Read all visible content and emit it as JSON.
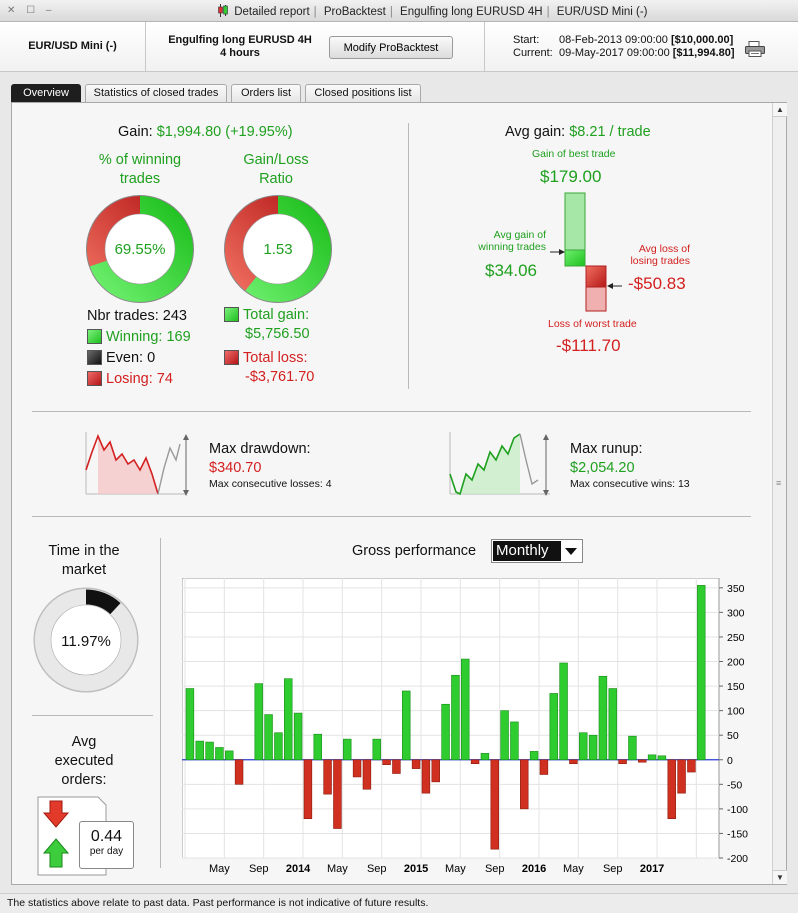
{
  "window": {
    "title_parts": [
      "Detailed report",
      "ProBacktest",
      "Engulfing long EURUSD 4H",
      "EUR/USD Mini (-)"
    ],
    "icons": [
      "candlestick-icon"
    ]
  },
  "header": {
    "instrument": "EUR/USD Mini (-)",
    "strategy_line1": "Engulfing long EURUSD 4H",
    "strategy_line2": "4 hours",
    "modify_button": "Modify ProBacktest",
    "start_label": "Start:",
    "start_date": "08-Feb-2013 09:00:00",
    "start_value": "[$10,000.00]",
    "current_label": "Current:",
    "current_date": "09-May-2017 09:00:00",
    "current_value": "[$11,994.80]"
  },
  "tabs": [
    {
      "label": "Overview",
      "active": true
    },
    {
      "label": "Statistics of closed trades",
      "active": false
    },
    {
      "label": "Orders list",
      "active": false
    },
    {
      "label": "Closed positions list",
      "active": false
    }
  ],
  "gain": {
    "label": "Gain:",
    "value": "$1,994.80 (+19.95%)"
  },
  "winning_pct": {
    "title_line1": "% of winning",
    "title_line2": "trades",
    "value": "69.55%",
    "fraction": 0.6955
  },
  "gain_loss_ratio": {
    "title_line1": "Gain/Loss",
    "title_line2": "Ratio",
    "value": "1.53",
    "gain_fraction": 0.605
  },
  "trades": {
    "nbr_label": "Nbr trades: 243",
    "winning_label": "Winning: 169",
    "even_label": "Even: 0",
    "losing_label": "Losing: 74"
  },
  "totals": {
    "gain_label": "Total gain:",
    "gain_value": "$5,756.50",
    "loss_label": "Total loss:",
    "loss_value": "-$3,761.70"
  },
  "avg_gain": {
    "label": "Avg gain:",
    "value": "$8.21 / trade",
    "best_label": "Gain of best trade",
    "best_value": "$179.00",
    "avg_win_line1": "Avg gain of",
    "avg_win_line2": "winning trades",
    "avg_win_value": "$34.06",
    "avg_loss_line1": "Avg loss of",
    "avg_loss_line2": "losing trades",
    "avg_loss_value": "-$50.83",
    "worst_label": "Loss of worst trade",
    "worst_value": "-$111.70"
  },
  "drawdown": {
    "label": "Max drawdown:",
    "value": "$340.70",
    "sub": "Max consecutive losses: 4"
  },
  "runup": {
    "label": "Max runup:",
    "value": "$2,054.20",
    "sub": "Max consecutive wins: 13"
  },
  "time_in_market": {
    "title_line1": "Time in the",
    "title_line2": "market",
    "value": "11.97%",
    "fraction": 0.1197
  },
  "avg_orders": {
    "title_line1": "Avg",
    "title_line2": "executed",
    "title_line3": "orders:",
    "value": "0.44",
    "unit": "per day"
  },
  "gross_performance": {
    "label": "Gross performance",
    "period": "Monthly"
  },
  "chart_data": {
    "type": "bar",
    "title": "",
    "ylim": [
      -200,
      370
    ],
    "yticks": [
      350,
      300,
      250,
      200,
      150,
      100,
      50,
      0,
      -50,
      -100,
      -150,
      -200
    ],
    "x_tick_labels": [
      {
        "label": "May",
        "index": 3,
        "bold": false
      },
      {
        "label": "Sep",
        "index": 7,
        "bold": false
      },
      {
        "label": "2014",
        "index": 11,
        "bold": true
      },
      {
        "label": "May",
        "index": 15,
        "bold": false
      },
      {
        "label": "Sep",
        "index": 19,
        "bold": false
      },
      {
        "label": "2015",
        "index": 23,
        "bold": true
      },
      {
        "label": "May",
        "index": 27,
        "bold": false
      },
      {
        "label": "Sep",
        "index": 31,
        "bold": false
      },
      {
        "label": "2016",
        "index": 35,
        "bold": true
      },
      {
        "label": "May",
        "index": 39,
        "bold": false
      },
      {
        "label": "Sep",
        "index": 43,
        "bold": false
      },
      {
        "label": "2017",
        "index": 47,
        "bold": true
      }
    ],
    "values": [
      145,
      38,
      36,
      25,
      18,
      -50,
      0,
      155,
      92,
      55,
      165,
      95,
      -120,
      52,
      -70,
      -140,
      42,
      -35,
      -60,
      42,
      -10,
      -28,
      140,
      -18,
      -68,
      -45,
      113,
      172,
      205,
      -8,
      13,
      -182,
      100,
      77,
      -100,
      17,
      -30,
      135,
      197,
      -8,
      55,
      50,
      170,
      145,
      -8,
      48,
      -5,
      10,
      8,
      -120,
      -68,
      -25,
      355,
      0
    ]
  },
  "colors": {
    "positive": "#2ecc2e",
    "negative": "#d0301f",
    "green_text": "#1fa01f",
    "red_text": "#d32020"
  },
  "footer": {
    "text": "The statistics above relate to past data. Past performance is not indicative of future results."
  }
}
